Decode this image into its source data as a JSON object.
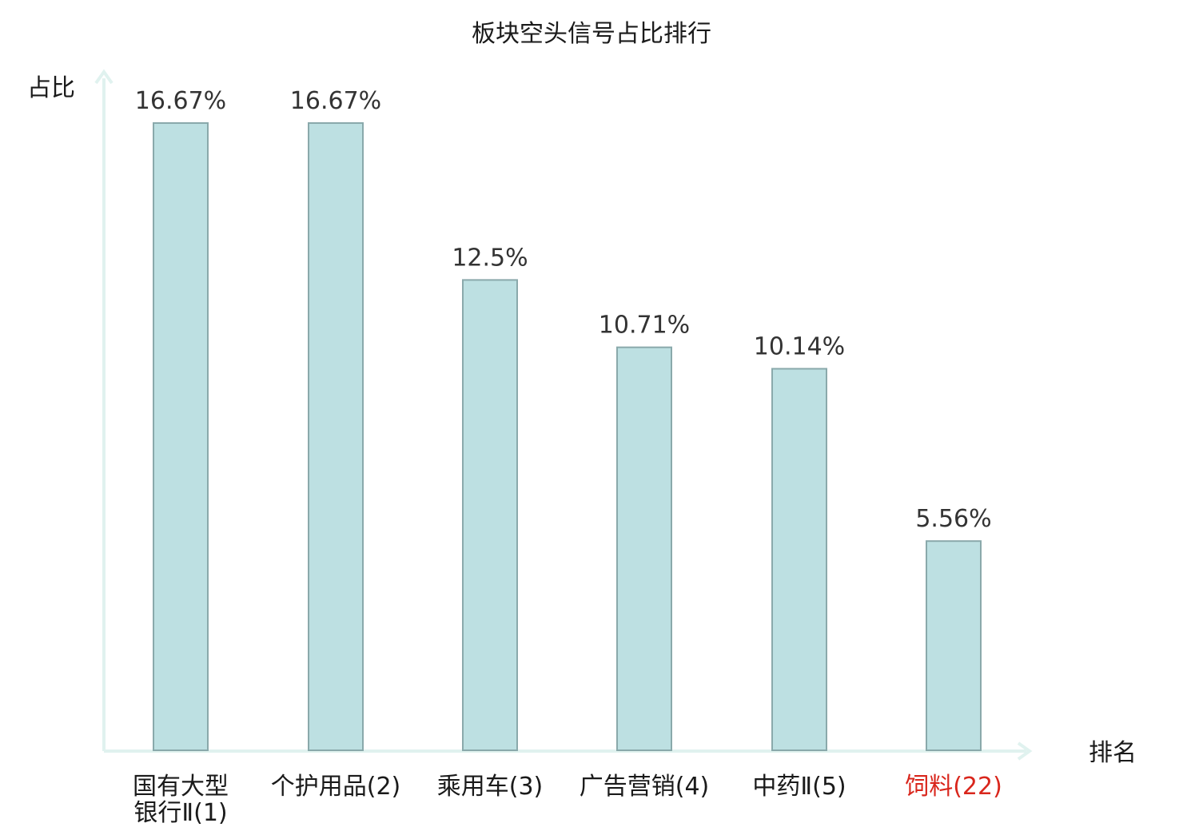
{
  "chart_data": {
    "type": "bar",
    "title": "板块空头信号占比排行",
    "ylabel": "占比",
    "xlabel": "排名",
    "ylim": [
      0,
      16.67
    ],
    "grid": false,
    "legend": "none",
    "categories": [
      [
        "国有大型",
        "银行Ⅱ(1)"
      ],
      [
        "个护用品(2)"
      ],
      [
        "乘用车(3)"
      ],
      [
        "广告营销(4)"
      ],
      [
        "中药Ⅱ(5)"
      ],
      [
        "饲料(22)"
      ]
    ],
    "values": [
      16.67,
      16.67,
      12.5,
      10.71,
      10.14,
      5.56
    ],
    "value_labels": [
      "16.67%",
      "16.67%",
      "12.5%",
      "10.71%",
      "10.14%",
      "5.56%"
    ],
    "highlight_index": 5,
    "colors": {
      "bar_fill": "#bde0e2",
      "bar_stroke": "#8aa9ab",
      "axis": "#e0f2ef",
      "highlight_text": "#d9261c"
    }
  }
}
